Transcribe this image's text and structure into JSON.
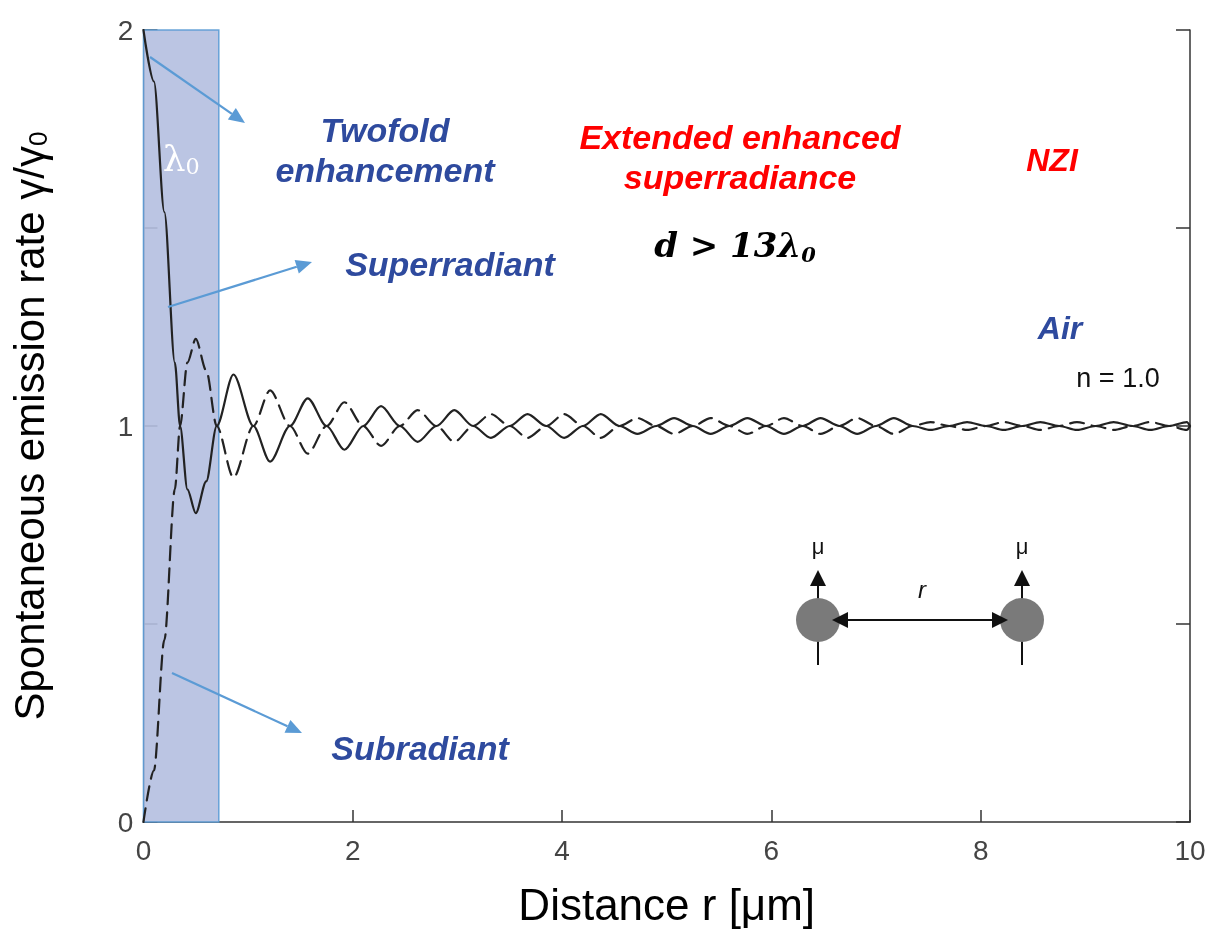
{
  "chart_data": {
    "type": "line",
    "xlabel": "Distance r [μm]",
    "ylabel": "Spontaneous emission rate γ/γ$_{0}$",
    "x": [
      0,
      0.1,
      0.2,
      0.3,
      0.35,
      0.42,
      0.5,
      0.6,
      0.7,
      0.86,
      1.05,
      1.21,
      1.4,
      1.57,
      1.75,
      1.92,
      2.1,
      2.27,
      2.45,
      2.62,
      2.8,
      2.97,
      3.15,
      3.32,
      3.5,
      3.67,
      3.85,
      4.02,
      4.2,
      4.37,
      4.55,
      4.72,
      4.9,
      5.07,
      5.25,
      5.42,
      5.6,
      5.77,
      5.95,
      6.12,
      6.3,
      6.47,
      6.65,
      6.82,
      7.0,
      7.17,
      7.35,
      7.52,
      7.7,
      7.87,
      8.05,
      8.22,
      8.4,
      8.57,
      8.75,
      8.92,
      9.1,
      9.27,
      9.45,
      9.62,
      9.8,
      9.97,
      10
    ],
    "series": [
      {
        "color": "#222222",
        "line_style": "solid",
        "values": [
          2,
          1.87,
          1.54,
          1.16,
          1,
          0.84,
          0.78,
          0.86,
          1,
          1.13,
          1,
          0.91,
          1,
          1.07,
          1,
          0.94,
          1,
          1.05,
          1,
          0.96,
          1,
          1.04,
          1,
          0.97,
          1,
          1.03,
          1,
          0.97,
          1,
          1.03,
          1,
          0.98,
          1,
          1.02,
          1,
          0.98,
          1,
          1.02,
          1,
          0.98,
          1,
          1.02,
          1,
          0.98,
          1,
          1.02,
          1,
          0.99,
          1,
          1.01,
          1,
          0.99,
          1,
          1.01,
          1,
          0.99,
          1,
          1.01,
          1,
          0.99,
          1,
          1.01,
          1
        ]
      },
      {
        "color": "#222222",
        "line_style": "dashed",
        "values": [
          0,
          0.13,
          0.46,
          0.84,
          1,
          1.16,
          1.22,
          1.14,
          1,
          0.87,
          1,
          1.09,
          1,
          0.93,
          1,
          1.06,
          1,
          0.95,
          1,
          1.04,
          1,
          0.96,
          1,
          1.03,
          1,
          0.97,
          1,
          1.03,
          1,
          0.97,
          1,
          1.02,
          1,
          0.98,
          1,
          1.02,
          1,
          0.98,
          1,
          1.02,
          1,
          0.98,
          1,
          1.02,
          1,
          0.98,
          1,
          1.01,
          1,
          0.99,
          1,
          1.01,
          1,
          0.99,
          1,
          1.01,
          1,
          0.99,
          1,
          1.01,
          1,
          0.99,
          1
        ]
      }
    ],
    "xlim": [
      0,
      10
    ],
    "xticks": [
      0,
      2,
      4,
      6,
      8,
      10
    ],
    "ylim": [
      0,
      2
    ],
    "yticks": [
      0,
      {
        "value": 0.5,
        "label": null
      },
      1,
      {
        "value": 1.5,
        "label": null
      },
      2
    ],
    "marker": "none",
    "bands": [
      {
        "axis": "x",
        "from": 0,
        "to": 0.72,
        "label": "λ$_{0}$",
        "color": "#b4bfe0"
      }
    ],
    "annotations": [
      "Twofold enhancement",
      "Superradiant",
      "Subradiant",
      "Extended enhanced superradiance",
      "d > 13λ$_{0}$",
      "NZI",
      "Air",
      "n = 1.0",
      "μ",
      "μ",
      "r"
    ]
  }
}
